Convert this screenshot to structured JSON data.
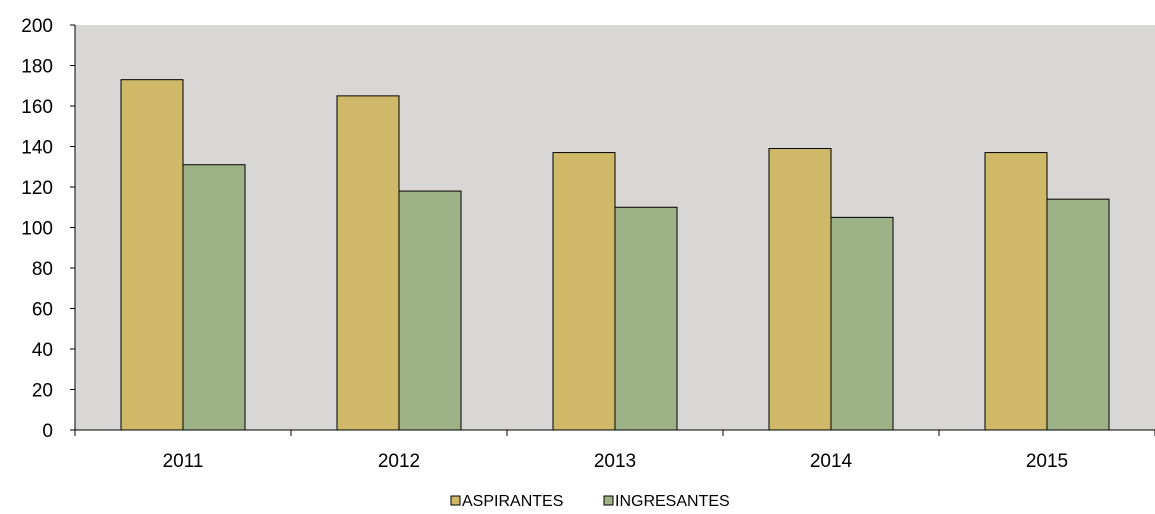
{
  "chart_data": {
    "type": "bar",
    "categories": [
      "2011",
      "2012",
      "2013",
      "2014",
      "2015"
    ],
    "series": [
      {
        "name": "ASPIRANTES",
        "values": [
          173,
          165,
          137,
          139,
          137
        ],
        "color": "#CFB968"
      },
      {
        "name": "INGRESANTES",
        "values": [
          131,
          118,
          110,
          105,
          114
        ],
        "color": "#9EB287"
      }
    ],
    "ylim": [
      0,
      200
    ],
    "yticks": [
      "0",
      "20",
      "40",
      "60",
      "80",
      "100",
      "120",
      "140",
      "160",
      "180",
      "200"
    ],
    "plot_background": "#D9D6D6",
    "grid": false,
    "legend_position": "bottom"
  }
}
